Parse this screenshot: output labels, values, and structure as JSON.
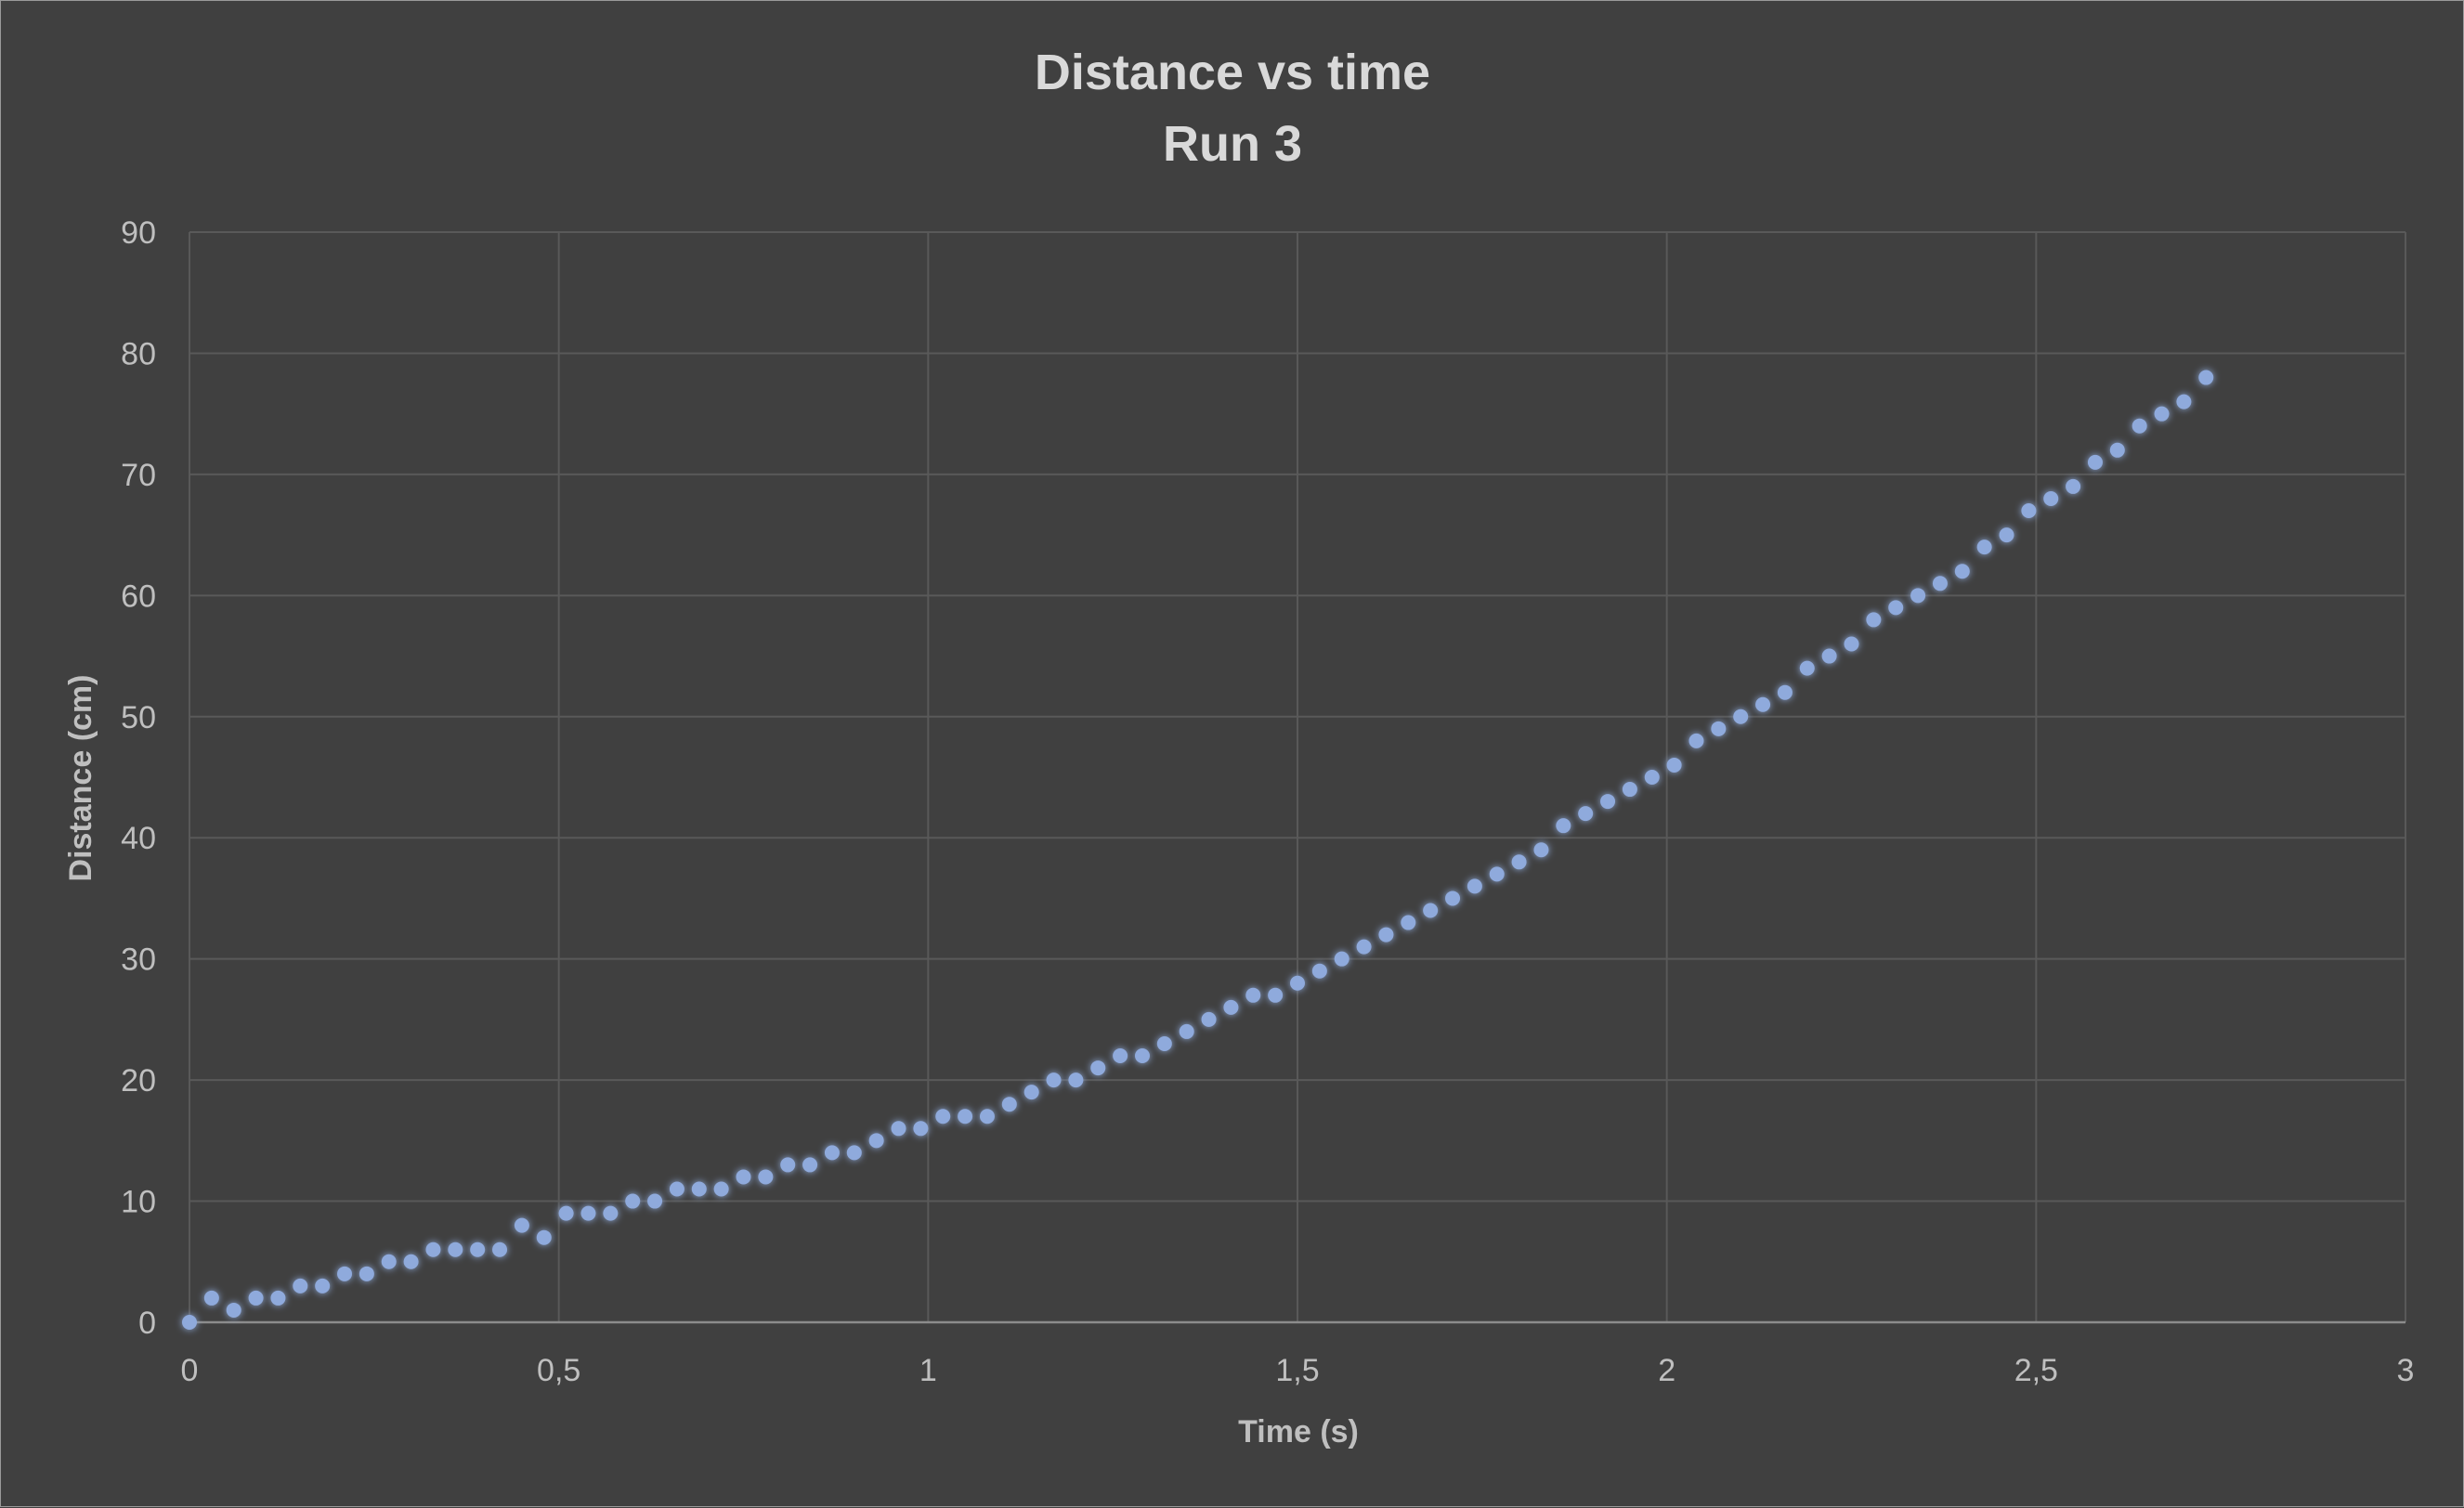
{
  "chart_data": {
    "type": "scatter",
    "title": "Distance vs time",
    "subtitle": "Run 3",
    "xlabel": "Time (s)",
    "ylabel": "Distance (cm)",
    "xlim": [
      0,
      3
    ],
    "ylim": [
      0,
      90
    ],
    "x_ticks": [
      "0",
      "0,5",
      "1",
      "1,5",
      "2",
      "2,5",
      "3"
    ],
    "y_ticks": [
      "0",
      "10",
      "20",
      "30",
      "40",
      "50",
      "60",
      "70",
      "80",
      "90"
    ],
    "grid": true,
    "legend": "none",
    "marker_color": "#8faadc",
    "series": [
      {
        "x": [
          0,
          0.03,
          0.06,
          0.09,
          0.12,
          0.15,
          0.18,
          0.21,
          0.24,
          0.27,
          0.3,
          0.33,
          0.36,
          0.39,
          0.42,
          0.45,
          0.48,
          0.51,
          0.54,
          0.57,
          0.6,
          0.63,
          0.66,
          0.69,
          0.72,
          0.75,
          0.78,
          0.81,
          0.84,
          0.87,
          0.9,
          0.93,
          0.96,
          0.99,
          1.02,
          1.05,
          1.08,
          1.11,
          1.14,
          1.17,
          1.2,
          1.23,
          1.26,
          1.29,
          1.32,
          1.35,
          1.38,
          1.41,
          1.44,
          1.47,
          1.5,
          1.53,
          1.56,
          1.59,
          1.62,
          1.65,
          1.68,
          1.71,
          1.74,
          1.77,
          1.8,
          1.83,
          1.86,
          1.89,
          1.92,
          1.95,
          1.98,
          2.01,
          2.04,
          2.07,
          2.1,
          2.13,
          2.16,
          2.19,
          2.22,
          2.25,
          2.28,
          2.31,
          2.34,
          2.37,
          2.4,
          2.43,
          2.46,
          2.49,
          2.52,
          2.55,
          2.58,
          2.61,
          2.64,
          2.67,
          2.7,
          2.73
        ],
        "y": [
          0,
          2,
          1,
          2,
          2,
          3,
          3,
          4,
          4,
          5,
          5,
          6,
          6,
          6,
          6,
          8,
          7,
          9,
          9,
          9,
          10,
          10,
          11,
          11,
          11,
          12,
          12,
          13,
          13,
          14,
          14,
          15,
          16,
          16,
          17,
          17,
          17,
          18,
          19,
          20,
          20,
          21,
          22,
          22,
          23,
          24,
          25,
          26,
          27,
          27,
          28,
          29,
          30,
          31,
          32,
          33,
          34,
          35,
          36,
          37,
          38,
          39,
          41,
          42,
          43,
          44,
          45,
          46,
          48,
          49,
          50,
          51,
          52,
          54,
          55,
          56,
          58,
          59,
          60,
          61,
          62,
          64,
          65,
          67,
          68,
          69,
          71,
          72,
          74,
          75,
          76,
          78
        ]
      }
    ]
  }
}
